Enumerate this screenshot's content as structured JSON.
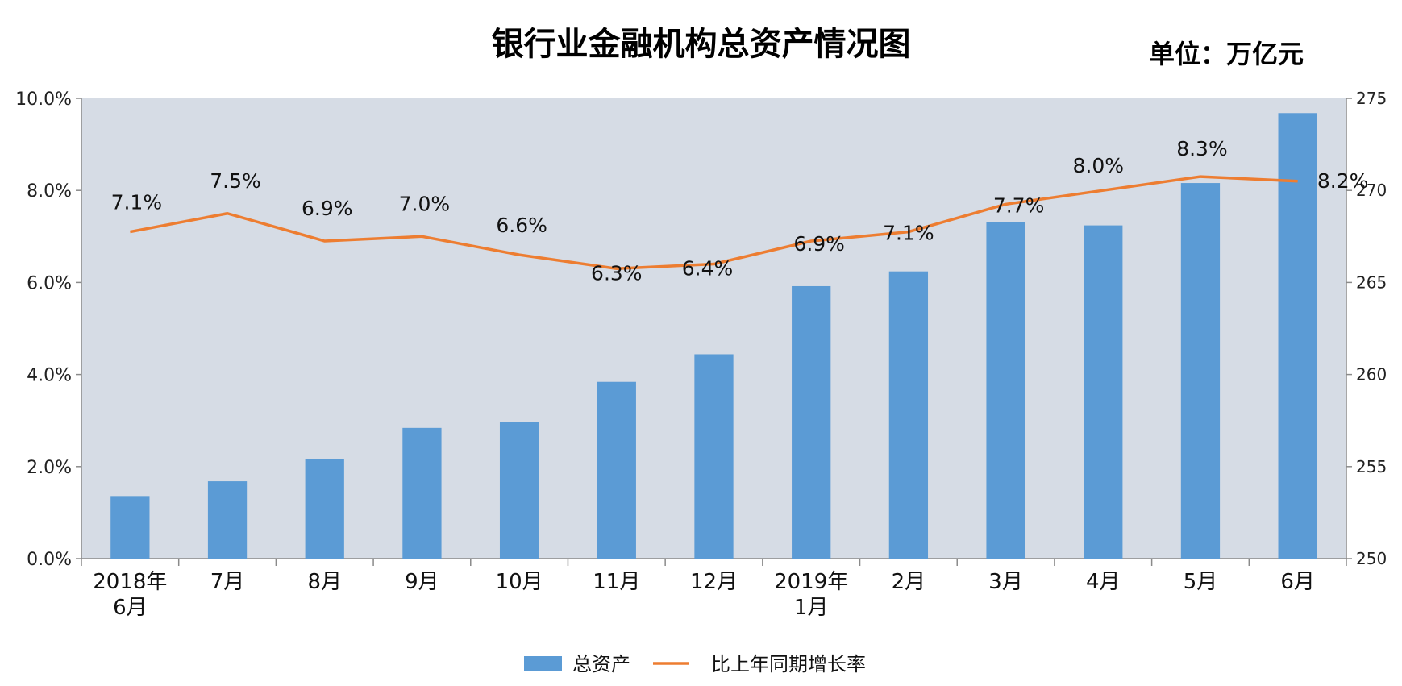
{
  "chart_data": {
    "type": "bar",
    "title": "银行业金融机构总资产情况图",
    "unit_label": "单位：万亿元",
    "categories": [
      [
        "2018年",
        "6月"
      ],
      [
        "7月"
      ],
      [
        "8月"
      ],
      [
        "9月"
      ],
      [
        "10月"
      ],
      [
        "11月"
      ],
      [
        "12月"
      ],
      [
        "2019年",
        "1月"
      ],
      [
        "2月"
      ],
      [
        "3月"
      ],
      [
        "4月"
      ],
      [
        "5月"
      ],
      [
        "6月"
      ]
    ],
    "series": [
      {
        "name": "总资产",
        "kind": "bar",
        "axis": "right",
        "color": "#5b9bd5",
        "values": [
          253.4,
          254.2,
          255.4,
          257.1,
          257.4,
          259.6,
          261.1,
          264.8,
          265.6,
          268.3,
          268.1,
          270.4,
          274.2
        ]
      },
      {
        "name": "比上年同期增长率",
        "kind": "line",
        "axis": "left",
        "color": "#ed7d31",
        "values": [
          7.1,
          7.5,
          6.9,
          7.0,
          6.6,
          6.3,
          6.4,
          6.9,
          7.1,
          7.7,
          8.0,
          8.3,
          8.2
        ],
        "labels": [
          "7.1%",
          "7.5%",
          "6.9%",
          "7.0%",
          "6.6%",
          "6.3%",
          "6.4%",
          "6.9%",
          "7.1%",
          "7.7%",
          "8.0%",
          "8.3%",
          "8.2%"
        ]
      }
    ],
    "y_left": {
      "min": 0,
      "max": 10,
      "ticks": [
        "0.0%",
        "2.0%",
        "4.0%",
        "6.0%",
        "8.0%",
        "10.0%"
      ]
    },
    "y_right": {
      "min": 250,
      "max": 275,
      "ticks": [
        "250",
        "255",
        "260",
        "265",
        "270",
        "275"
      ]
    },
    "legend_position": "bottom",
    "plot_background": "#d6dce5",
    "grid": false
  }
}
